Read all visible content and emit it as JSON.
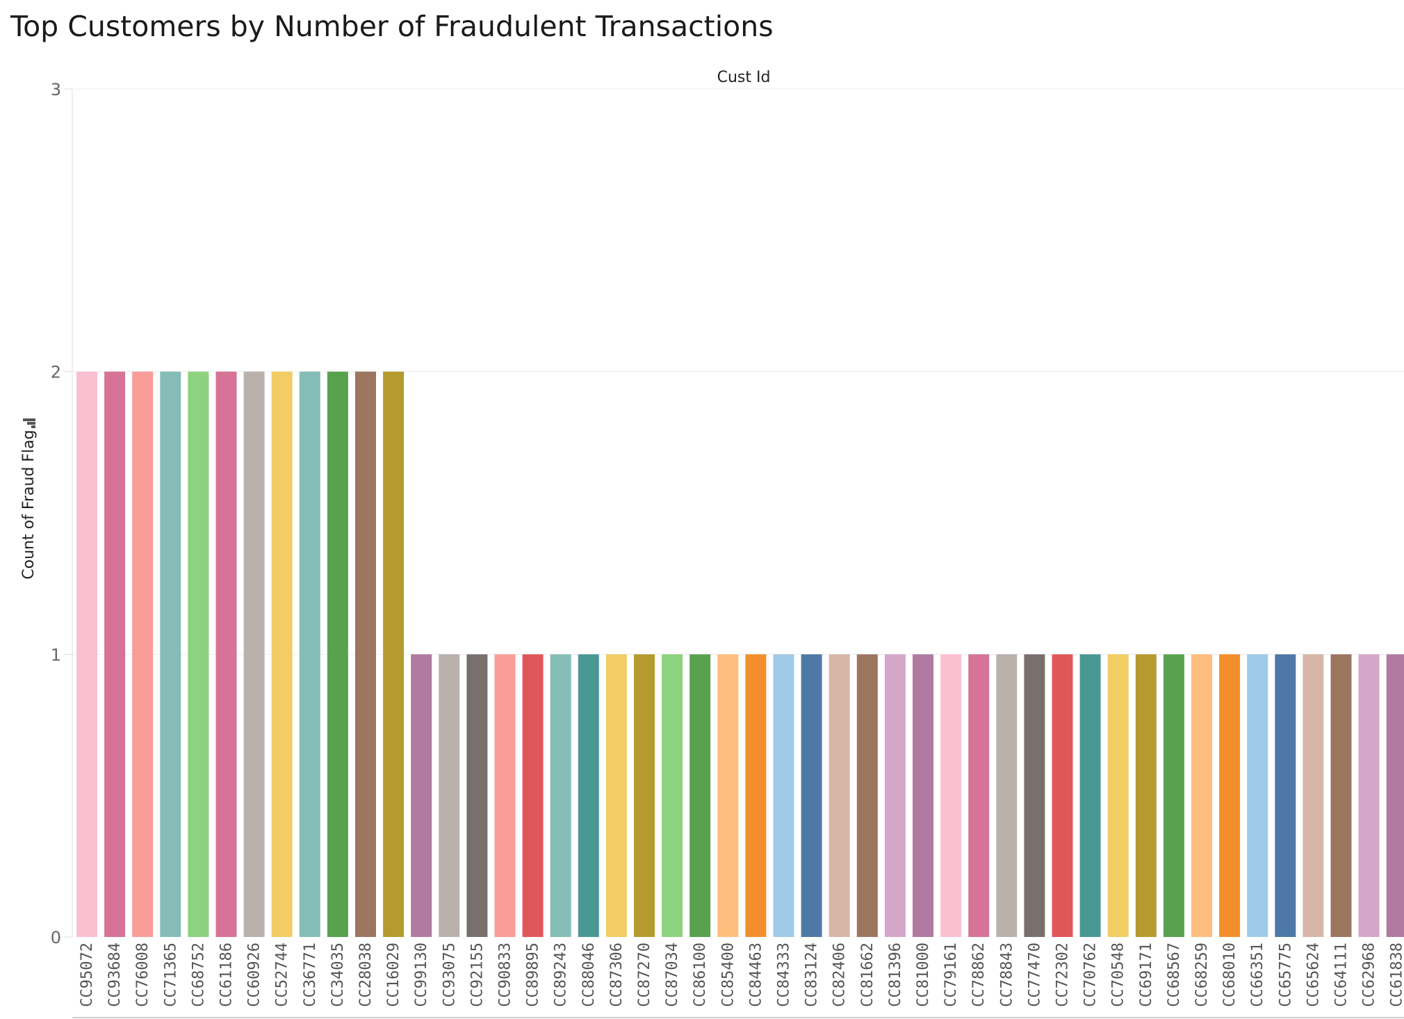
{
  "chart_data": {
    "type": "bar",
    "title": "Top Customers by Number of Fraudulent Transactions",
    "column_header": "Cust Id",
    "ylabel": "Count of Fraud Flag",
    "ylim": [
      0,
      3
    ],
    "yticks": [
      "0",
      "1",
      "2",
      "3"
    ],
    "grid": true,
    "legend": "none",
    "categories": [
      "CC95072",
      "CC93684",
      "CC76008",
      "CC71365",
      "CC68752",
      "CC61186",
      "CC60926",
      "CC52744",
      "CC36771",
      "CC34035",
      "CC28038",
      "CC16029",
      "CC99130",
      "CC93075",
      "CC92155",
      "CC90833",
      "CC89895",
      "CC89243",
      "CC88046",
      "CC87306",
      "CC87270",
      "CC87034",
      "CC86100",
      "CC85400",
      "CC84463",
      "CC84333",
      "CC83124",
      "CC82406",
      "CC81662",
      "CC81396",
      "CC81000",
      "CC79161",
      "CC78862",
      "CC78843",
      "CC77470",
      "CC72302",
      "CC70762",
      "CC70548",
      "CC69171",
      "CC68567",
      "CC68259",
      "CC68010",
      "CC66351",
      "CC65775",
      "CC65624",
      "CC64111",
      "CC62968",
      "CC61838"
    ],
    "values": [
      2,
      2,
      2,
      2,
      2,
      2,
      2,
      2,
      2,
      2,
      2,
      2,
      1,
      1,
      1,
      1,
      1,
      1,
      1,
      1,
      1,
      1,
      1,
      1,
      1,
      1,
      1,
      1,
      1,
      1,
      1,
      1,
      1,
      1,
      1,
      1,
      1,
      1,
      1,
      1,
      1,
      1,
      1,
      1,
      1,
      1,
      1,
      1
    ],
    "colors": [
      "#FBBFD2",
      "#D67396",
      "#FA9C97",
      "#86BCB6",
      "#8DD27F",
      "#D67396",
      "#BAB0AC",
      "#F1CD64",
      "#86BCB6",
      "#59A14F",
      "#9D7660",
      "#B59A30",
      "#B07AA1",
      "#BAB0AC",
      "#79706E",
      "#FA9C97",
      "#E15759",
      "#86BCB6",
      "#499894",
      "#F1CD64",
      "#B59A30",
      "#8DD27F",
      "#59A14F",
      "#FFBE7D",
      "#F28E2B",
      "#A0CBE8",
      "#4E79A7",
      "#D7B5A6",
      "#9D7660",
      "#D4A6C8",
      "#B07AA1",
      "#FBBFD2",
      "#D67396",
      "#BAB0AC",
      "#79706E",
      "#E15759",
      "#499894",
      "#F1CD64",
      "#B59A30",
      "#59A14F",
      "#FFBE7D",
      "#F28E2B",
      "#A0CBE8",
      "#4E79A7",
      "#D7B5A6",
      "#9D7660",
      "#D4A6C8",
      "#B07AA1"
    ]
  }
}
